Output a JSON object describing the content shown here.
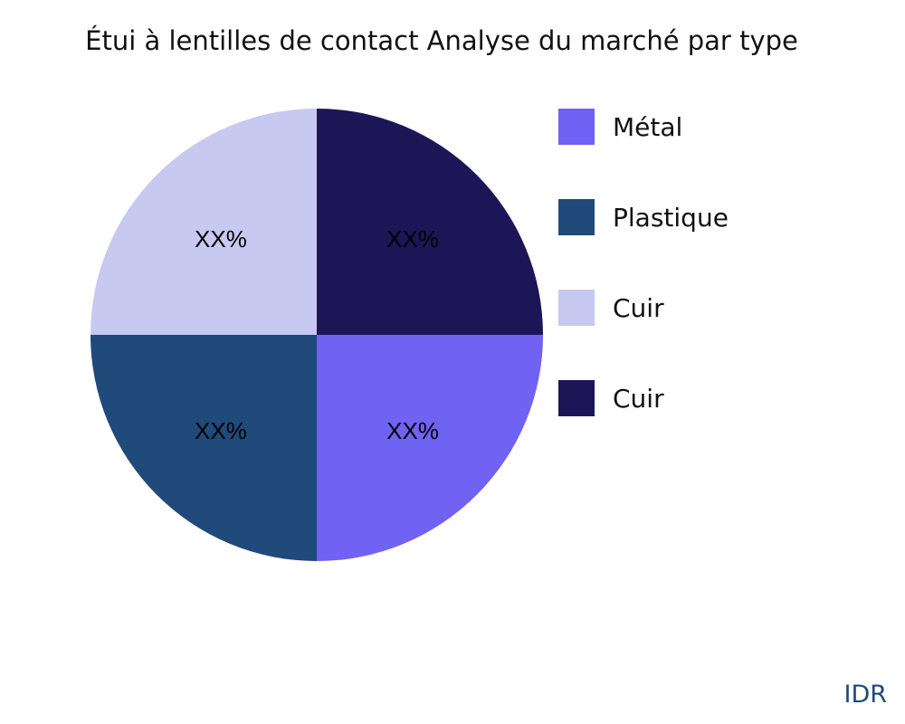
{
  "chart_data": {
    "type": "pie",
    "title": "Étui à lentilles de contact Analyse du marché par type",
    "categories": [
      "Métal",
      "Plastique",
      "Cuir",
      "Cuir"
    ],
    "values": [
      25,
      25,
      25,
      25
    ],
    "data_labels": [
      "XX%",
      "XX%",
      "XX%",
      "XX%"
    ],
    "colors": [
      "#7062f2",
      "#1f4a7a",
      "#c8c9f0",
      "#1c1656"
    ],
    "legend_position": "right",
    "direction": "clockwise"
  },
  "watermark": "IDR"
}
